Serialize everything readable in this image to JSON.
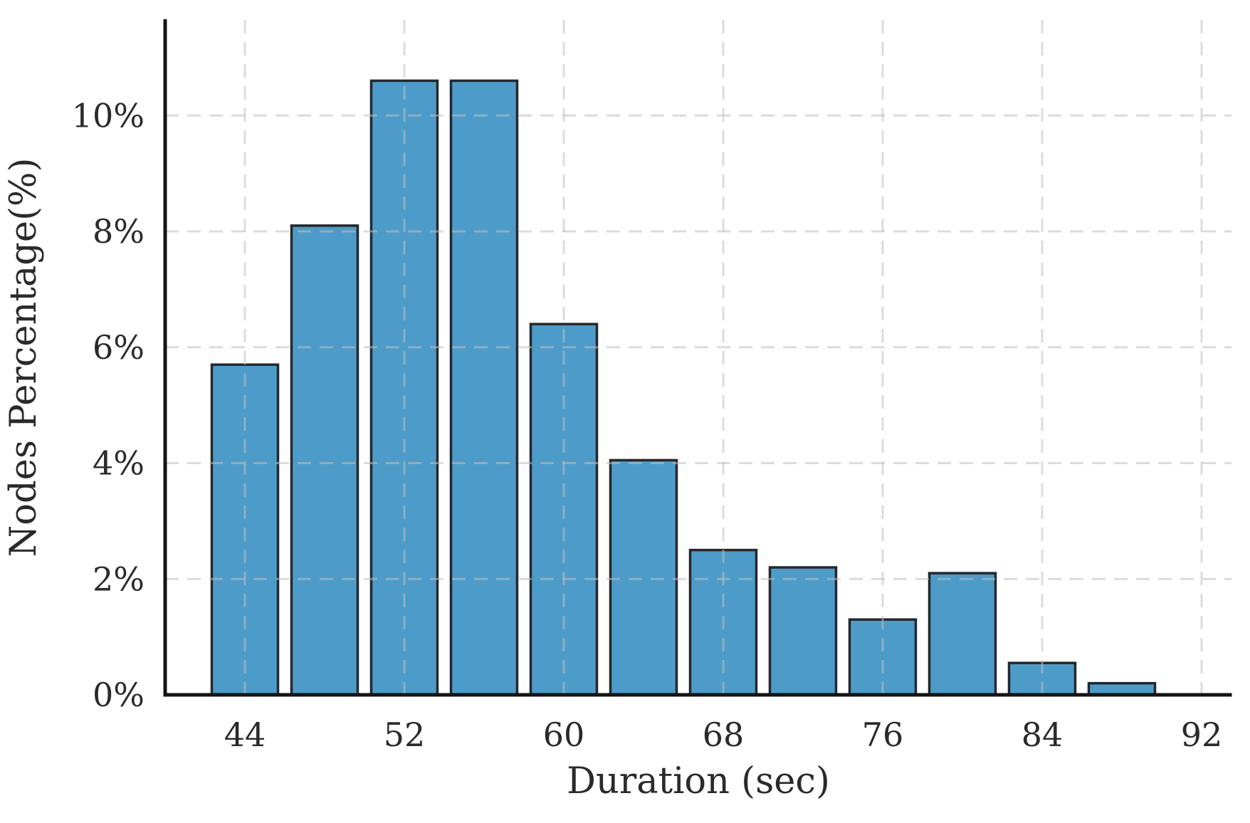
{
  "chart_data": {
    "type": "bar",
    "subtype": "histogram",
    "title": "",
    "xlabel": "Duration (sec)",
    "ylabel": "Nodes Percentage(%)",
    "categories": [
      44,
      48,
      52,
      56,
      60,
      64,
      68,
      72,
      76,
      80,
      84,
      88
    ],
    "values": [
      5.7,
      8.1,
      10.6,
      10.6,
      6.4,
      4.05,
      2.5,
      2.2,
      1.3,
      2.1,
      0.55,
      0.2
    ],
    "value_unit": "%",
    "bin_width_sec": 4,
    "bar_width_sec": 3.32,
    "xlim": [
      40,
      93.5
    ],
    "ylim": [
      0,
      11.65
    ],
    "xticks": {
      "values": [
        44,
        52,
        60,
        68,
        76,
        84,
        92
      ],
      "labels": [
        "44",
        "52",
        "60",
        "68",
        "76",
        "84",
        "92"
      ]
    },
    "yticks": {
      "values": [
        0,
        2,
        4,
        6,
        8,
        10
      ],
      "labels": [
        "0%",
        "2%",
        "4%",
        "6%",
        "8%",
        "10%"
      ]
    },
    "grid": {
      "style": "dashed",
      "drawn_above_bars": true
    },
    "legend_position": "none",
    "colors": {
      "bar_fill": "#4d9bc9",
      "bar_edge": "#24282c",
      "grid": "#bfbfbf",
      "spine": "#141414",
      "text": "#2a2a2a",
      "background": "#ffffff"
    }
  }
}
